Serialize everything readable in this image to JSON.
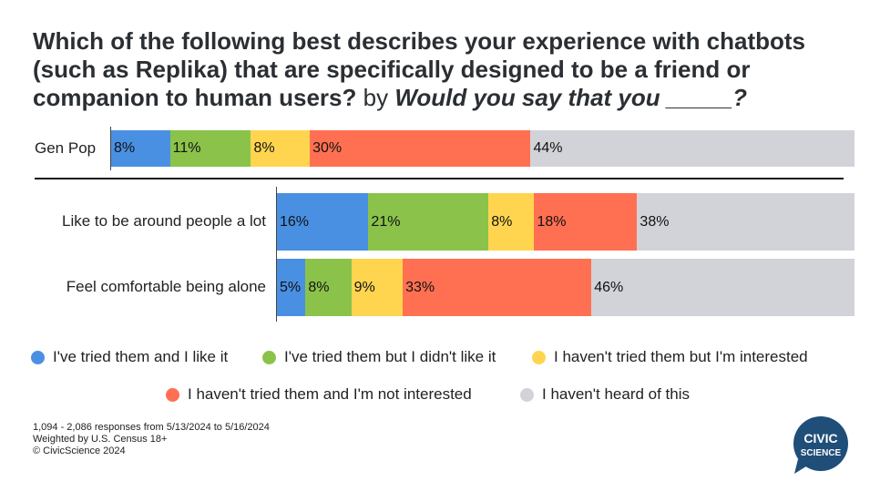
{
  "title": {
    "main": "Which of the following best describes your experience with chatbots (such as Replika) that are specifically designed to be a friend or companion to human users?",
    "by": "by",
    "italic": "Would you say that you _____?"
  },
  "chart_data": {
    "type": "bar",
    "orientation": "horizontal",
    "stacked": true,
    "series": [
      {
        "name": "I've tried them and I like it",
        "color": "#4a90e2"
      },
      {
        "name": "I've tried them but I didn't like it",
        "color": "#8bc34a"
      },
      {
        "name": "I haven't tried them but I'm interested",
        "color": "#ffd54f"
      },
      {
        "name": "I haven't tried them and I'm not interested",
        "color": "#ff7052"
      },
      {
        "name": "I haven't heard of this",
        "color": "#d2d3d8"
      }
    ],
    "rows": [
      {
        "label": "Gen Pop",
        "values": [
          8,
          11,
          8,
          30,
          44
        ]
      },
      {
        "label": "Like to be around people a lot",
        "values": [
          16,
          21,
          8,
          18,
          38
        ]
      },
      {
        "label": "Feel comfortable being alone",
        "values": [
          5,
          8,
          9,
          33,
          46
        ]
      }
    ],
    "value_suffix": "%"
  },
  "footnote": {
    "line1": "1,094 - 2,086 responses from 5/13/2024 to 5/16/2024",
    "line2": "Weighted by U.S. Census 18+",
    "line3": "© CivicScience 2024"
  },
  "logo": {
    "line1": "CIVIC",
    "line2": "SCIENCE",
    "color": "#1f4e79"
  }
}
